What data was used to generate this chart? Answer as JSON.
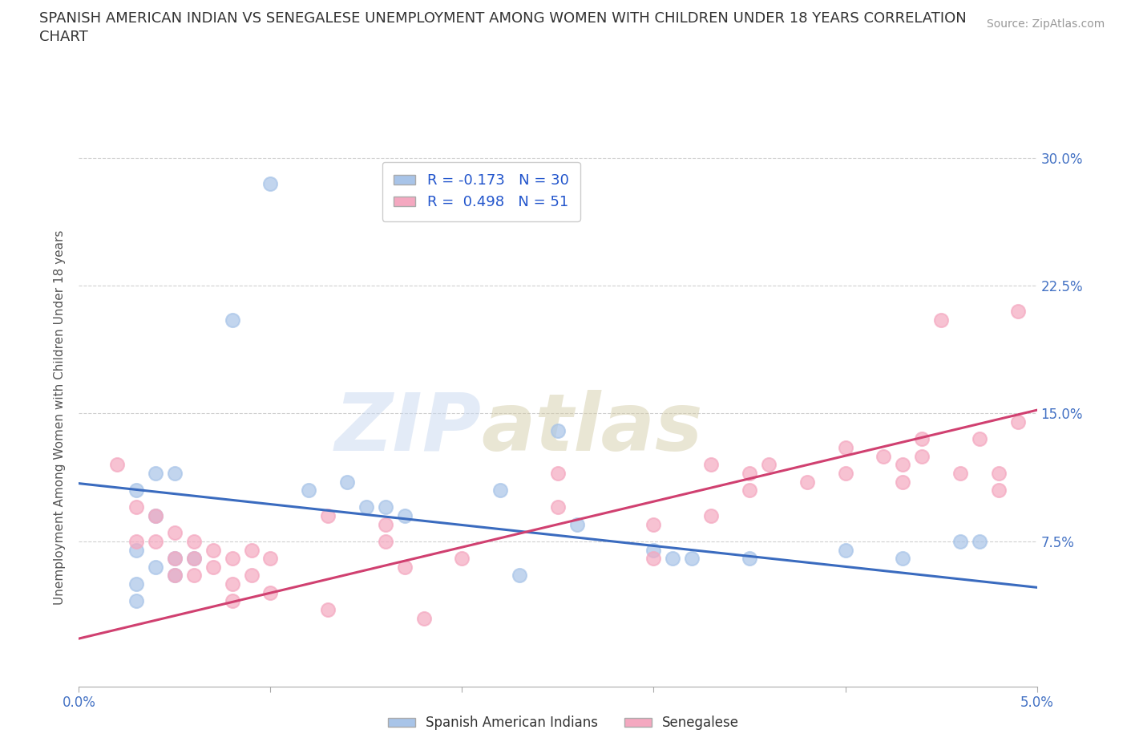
{
  "title_line1": "SPANISH AMERICAN INDIAN VS SENEGALESE UNEMPLOYMENT AMONG WOMEN WITH CHILDREN UNDER 18 YEARS CORRELATION",
  "title_line2": "CHART",
  "source_text": "Source: ZipAtlas.com",
  "ylabel": "Unemployment Among Women with Children Under 18 years",
  "legend_entries": [
    {
      "label": "R = -0.173   N = 30",
      "color": "#a8c4e8"
    },
    {
      "label": "R =  0.498   N = 51",
      "color": "#f4a8c0"
    }
  ],
  "legend_labels_bottom": [
    "Spanish American Indians",
    "Senegalese"
  ],
  "blue_line_color": "#3a6bbf",
  "pink_line_color": "#d04070",
  "blue_scatter_color": "#a8c4e8",
  "pink_scatter_color": "#f4a8c0",
  "watermark_zip": "ZIP",
  "watermark_atlas": "atlas",
  "xlim": [
    0.0,
    0.05
  ],
  "ylim": [
    -0.01,
    0.305
  ],
  "blue_scatter_x": [
    0.01,
    0.008,
    0.003,
    0.004,
    0.005,
    0.004,
    0.003,
    0.005,
    0.006,
    0.004,
    0.005,
    0.003,
    0.003,
    0.012,
    0.014,
    0.015,
    0.016,
    0.017,
    0.022,
    0.023,
    0.025,
    0.026,
    0.03,
    0.031,
    0.032,
    0.035,
    0.04,
    0.043,
    0.046,
    0.047
  ],
  "blue_scatter_y": [
    0.285,
    0.205,
    0.105,
    0.115,
    0.115,
    0.09,
    0.07,
    0.065,
    0.065,
    0.06,
    0.055,
    0.05,
    0.04,
    0.105,
    0.11,
    0.095,
    0.095,
    0.09,
    0.105,
    0.055,
    0.14,
    0.085,
    0.07,
    0.065,
    0.065,
    0.065,
    0.07,
    0.065,
    0.075,
    0.075
  ],
  "pink_scatter_x": [
    0.002,
    0.003,
    0.003,
    0.004,
    0.004,
    0.005,
    0.005,
    0.005,
    0.006,
    0.006,
    0.006,
    0.007,
    0.007,
    0.008,
    0.008,
    0.008,
    0.009,
    0.009,
    0.01,
    0.01,
    0.013,
    0.013,
    0.016,
    0.016,
    0.017,
    0.018,
    0.02,
    0.025,
    0.025,
    0.03,
    0.03,
    0.033,
    0.033,
    0.035,
    0.035,
    0.036,
    0.038,
    0.04,
    0.04,
    0.042,
    0.043,
    0.043,
    0.044,
    0.044,
    0.045,
    0.046,
    0.047,
    0.048,
    0.048,
    0.049,
    0.049
  ],
  "pink_scatter_y": [
    0.12,
    0.095,
    0.075,
    0.09,
    0.075,
    0.08,
    0.065,
    0.055,
    0.075,
    0.065,
    0.055,
    0.07,
    0.06,
    0.065,
    0.05,
    0.04,
    0.07,
    0.055,
    0.065,
    0.045,
    0.09,
    0.035,
    0.085,
    0.075,
    0.06,
    0.03,
    0.065,
    0.115,
    0.095,
    0.085,
    0.065,
    0.12,
    0.09,
    0.115,
    0.105,
    0.12,
    0.11,
    0.13,
    0.115,
    0.125,
    0.12,
    0.11,
    0.135,
    0.125,
    0.205,
    0.115,
    0.135,
    0.115,
    0.105,
    0.21,
    0.145
  ],
  "blue_line_x": [
    0.0,
    0.05
  ],
  "blue_line_y": [
    0.109,
    0.048
  ],
  "pink_line_x": [
    0.0,
    0.05
  ],
  "pink_line_y": [
    0.018,
    0.152
  ],
  "grid_color": "#d0d0d0",
  "background_color": "#ffffff",
  "title_fontsize": 13,
  "axis_label_fontsize": 11,
  "tick_fontsize": 12
}
